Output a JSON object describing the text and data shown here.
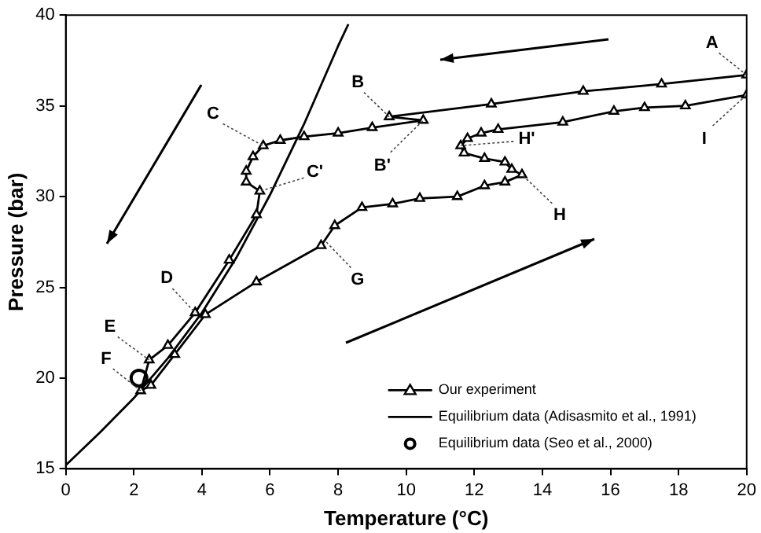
{
  "chart_data": {
    "type": "line",
    "xlabel": "Temperature (°C)",
    "ylabel": "Pressure (bar)",
    "xlim": [
      0,
      20
    ],
    "ylim": [
      15,
      40
    ],
    "xticks": [
      0,
      2,
      4,
      6,
      8,
      10,
      12,
      14,
      16,
      18,
      20
    ],
    "yticks": [
      15,
      20,
      25,
      30,
      35,
      40
    ],
    "grid": false,
    "legend": "bottom right",
    "line_style": "solid",
    "series": [
      {
        "name": "Our experiment",
        "type": "line",
        "marker": "triangle",
        "color": "#000000",
        "x": [
          20,
          17.5,
          15.2,
          12.5,
          9.5,
          10.5,
          9,
          8,
          7,
          6.3,
          5.8,
          5.5,
          5.3,
          5.3,
          5.7,
          5.6,
          4.8,
          3.8,
          3,
          2.45,
          2.2,
          2.5,
          3.2,
          4.1,
          5.6,
          7.5,
          7.9,
          8.7,
          9.6,
          10.4,
          11.5,
          12.3,
          12.9,
          13.4,
          13.1,
          12.9,
          12.3,
          11.7,
          11.6,
          11.8,
          12.2,
          12.7,
          14.6,
          16.1,
          17,
          18.2,
          20
        ],
        "values": [
          36.7,
          36.2,
          35.8,
          35.1,
          34.4,
          34.2,
          33.8,
          33.5,
          33.3,
          33.1,
          32.8,
          32.2,
          31.4,
          30.8,
          30.3,
          29,
          26.5,
          23.6,
          21.8,
          21,
          19.3,
          19.6,
          21.3,
          23.5,
          25.3,
          27.3,
          28.4,
          29.4,
          29.6,
          29.9,
          30,
          30.6,
          30.8,
          31.2,
          31.5,
          31.9,
          32.1,
          32.4,
          32.8,
          33.2,
          33.5,
          33.7,
          34.1,
          34.7,
          34.9,
          35,
          35.6
        ]
      },
      {
        "name": "Equilibrium data (Adisasmito et al., 1991)",
        "type": "line",
        "marker": "none",
        "color": "#000000",
        "x": [
          0,
          1,
          2,
          3,
          4,
          5,
          6,
          7,
          8,
          8.3
        ],
        "values": [
          15.2,
          17,
          18.9,
          21.1,
          23.6,
          26.6,
          30.1,
          34,
          38.3,
          39.5
        ]
      },
      {
        "name": "Equilibrium data (Seo et al., 2000)",
        "type": "scatter",
        "marker": "circle",
        "color": "#000000",
        "x": [
          2.15
        ],
        "values": [
          20
        ]
      }
    ],
    "annotations": [
      {
        "text": "A",
        "x": 20,
        "y": 36.7
      },
      {
        "text": "B",
        "x": 9.5,
        "y": 34.4
      },
      {
        "text": "B'",
        "x": 10.5,
        "y": 34.2
      },
      {
        "text": "C",
        "x": 5.8,
        "y": 32.8
      },
      {
        "text": "C'",
        "x": 5.7,
        "y": 30.3
      },
      {
        "text": "D",
        "x": 3.8,
        "y": 23.6
      },
      {
        "text": "E",
        "x": 2.45,
        "y": 21
      },
      {
        "text": "F",
        "x": 2.2,
        "y": 19.3
      },
      {
        "text": "G",
        "x": 7.6,
        "y": 27.6
      },
      {
        "text": "H",
        "x": 13.4,
        "y": 31.2
      },
      {
        "text": "H'",
        "x": 11.6,
        "y": 32.8
      },
      {
        "text": "I",
        "x": 20,
        "y": 35.6
      }
    ]
  }
}
